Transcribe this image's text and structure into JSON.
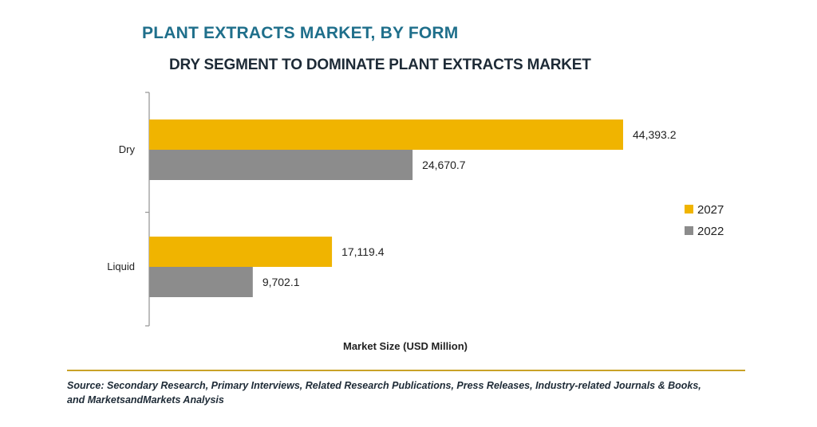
{
  "chart_data": {
    "type": "bar",
    "orientation": "horizontal",
    "title": "PLANT EXTRACTS MARKET, BY FORM",
    "subtitle": "DRY SEGMENT TO DOMINATE PLANT EXTRACTS MARKET",
    "xlabel": "Market Size (USD Million)",
    "ylabel": "",
    "categories": [
      "Dry",
      "Liquid"
    ],
    "series": [
      {
        "name": "2027",
        "values": [
          44393.2,
          17119.4
        ],
        "labels": [
          "44,393.2",
          "17,119.4"
        ],
        "color": "#f0b400"
      },
      {
        "name": "2022",
        "values": [
          24670.7,
          9702.1
        ],
        "labels": [
          "24,670.7",
          "9,702.1"
        ],
        "color": "#8c8c8c"
      }
    ],
    "xlim": [
      0,
      50000
    ],
    "grid": false,
    "legend": "right",
    "source_lines": [
      "Source: Secondary Research, Primary Interviews, Related Research Publications, Press Releases, Industry-related Journals & Books,",
      "and MarketsandMarkets Analysis"
    ]
  }
}
